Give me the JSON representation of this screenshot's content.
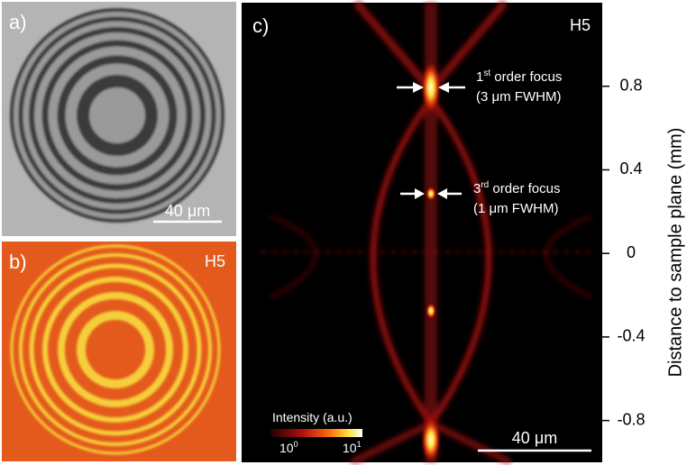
{
  "panels": [
    {
      "label": "a)",
      "scale_bar": "40 μm"
    },
    {
      "label": "b)",
      "tag": "H5"
    },
    {
      "label": "c)",
      "tag": "H5",
      "annotations": [
        {
          "number": "1",
          "sup": "st",
          "text": " order focus",
          "detail": "(3 μm FWHM)"
        },
        {
          "number": "3",
          "sup": "rd",
          "text": " order focus",
          "detail": "(1 μm FWHM)"
        }
      ],
      "colorbar": {
        "title": "Intensity (a.u.)",
        "min": {
          "base": "10",
          "exp": "0"
        },
        "max": {
          "base": "10",
          "exp": "1"
        }
      },
      "scale_bar": "40 μm",
      "axis": {
        "label": "Distance to sample plane (mm)",
        "ylim": [
          -1.0,
          1.2
        ],
        "yticks": [
          0.8,
          0.4,
          0,
          -0.4,
          -0.8
        ]
      }
    }
  ]
}
